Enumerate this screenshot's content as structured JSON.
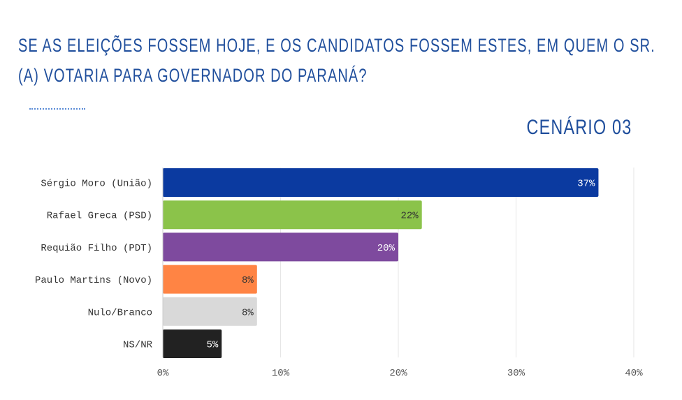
{
  "title_lines": [
    "SE AS ELEIÇÕES FOSSEM HOJE, E OS CANDIDATOS FOSSEM ESTES, EM QUEM O SR.",
    "(A) VOTARIA PARA GOVERNADOR DO PARANÁ?"
  ],
  "scenario": "CENÁRIO 03",
  "colors": {
    "title": "#1f4e9c",
    "grid": "#e6e6e6"
  },
  "chart_data": {
    "type": "bar",
    "orientation": "horizontal",
    "categories": [
      "Sérgio Moro (União)",
      "Rafael Greca (PSD)",
      "Requião Filho (PDT)",
      "Paulo Martins (Novo)",
      "Nulo/Branco",
      "NS/NR"
    ],
    "values": [
      37,
      22,
      20,
      8,
      8,
      5
    ],
    "value_labels": [
      "37%",
      "22%",
      "20%",
      "8%",
      "8%",
      "5%"
    ],
    "bar_colors": [
      "#0b3aa0",
      "#8bc34a",
      "#7e4a9e",
      "#ff8444",
      "#d9d9d9",
      "#222222"
    ],
    "label_colors": [
      "#ffffff",
      "#333333",
      "#ffffff",
      "#333333",
      "#333333",
      "#ffffff"
    ],
    "xlim": [
      0,
      40
    ],
    "xticks": [
      0,
      10,
      20,
      30,
      40
    ],
    "xtick_labels": [
      "0%",
      "10%",
      "20%",
      "30%",
      "40%"
    ],
    "grid": true,
    "legend": "none"
  }
}
